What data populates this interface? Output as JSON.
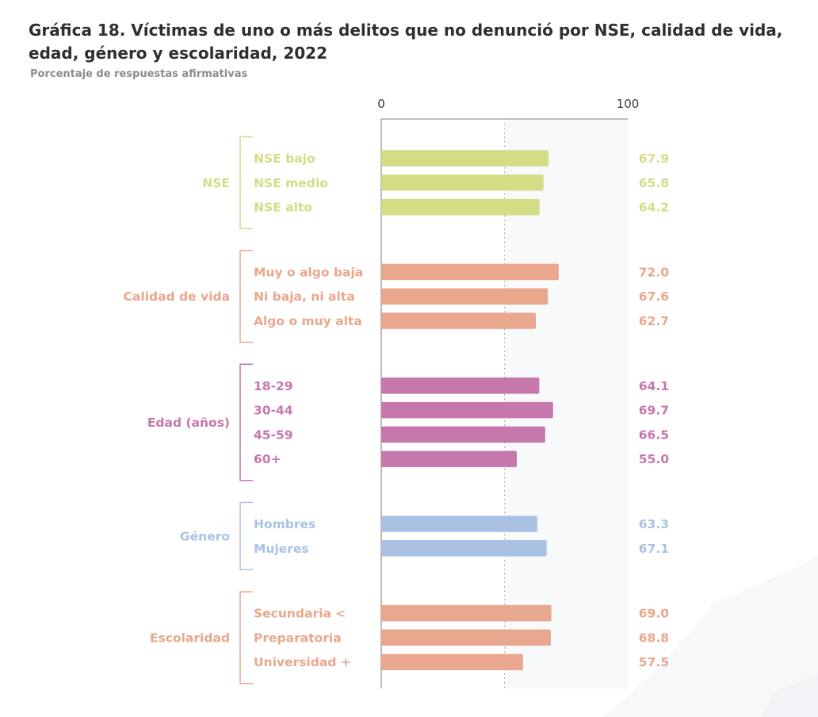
{
  "title": "Gráfica 18. Víctimas de uno o más delitos que no denunció por NSE, calidad de vida, edad, género y escolaridad, 2022",
  "subtitle": "Porcentaje de respuestas afirmativas",
  "chart_data": {
    "type": "bar",
    "orientation": "horizontal",
    "xlim": [
      0,
      100
    ],
    "x_ticks": [
      "0",
      "100"
    ],
    "groups": [
      {
        "name": "NSE",
        "color": "#d4dc86",
        "categories": [
          "NSE bajo",
          "NSE medio",
          "NSE alto"
        ],
        "values": [
          67.9,
          65.8,
          64.2
        ],
        "labels": [
          "67.9",
          "65.8",
          "64.2"
        ]
      },
      {
        "name": "Calidad de vida",
        "color": "#e9a78e",
        "categories": [
          "Muy o algo baja",
          "Ni baja, ni alta",
          "Algo o muy alta"
        ],
        "values": [
          72.0,
          67.6,
          62.7
        ],
        "labels": [
          "72.0",
          "67.6",
          "62.7"
        ]
      },
      {
        "name": "Edad (años)",
        "color": "#c677ac",
        "categories": [
          "18-29",
          "30-44",
          "45-59",
          "60+"
        ],
        "values": [
          64.1,
          69.7,
          66.5,
          55.0
        ],
        "labels": [
          "64.1",
          "69.7",
          "66.5",
          "55.0"
        ]
      },
      {
        "name": "Género",
        "color": "#a9c2e3",
        "categories": [
          "Hombres",
          "Mujeres"
        ],
        "values": [
          63.3,
          67.1
        ],
        "labels": [
          "63.3",
          "67.1"
        ]
      },
      {
        "name": "Escolaridad",
        "color": "#e9a78e",
        "categories": [
          "Secundaria <",
          "Preparatoria",
          "Universidad +"
        ],
        "values": [
          69.0,
          68.8,
          57.5
        ],
        "labels": [
          "69.0",
          "68.8",
          "57.5"
        ]
      }
    ]
  }
}
